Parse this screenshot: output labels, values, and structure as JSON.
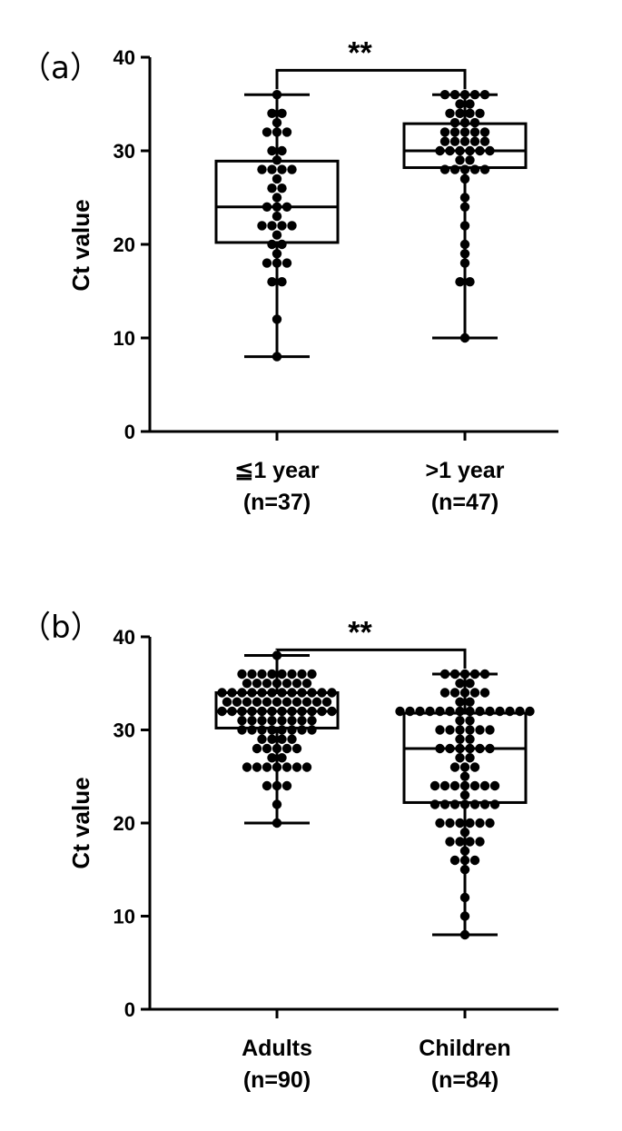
{
  "chart_data": [
    {
      "type": "box",
      "panel_label": "（a）",
      "ylabel": "Ct value",
      "ylim": [
        0,
        40
      ],
      "yticks": [
        "0",
        "10",
        "20",
        "30",
        "40"
      ],
      "significance": "**",
      "groups": [
        {
          "name": "≦1 year",
          "n_label": "(n=37)",
          "min": 8,
          "q1": 20.2,
          "median": 24,
          "q3": 28.9,
          "max": 36,
          "points": [
            36,
            34,
            34,
            33,
            32,
            32,
            32,
            30,
            30,
            29,
            28,
            28,
            28,
            28,
            27,
            26,
            26,
            25,
            24,
            24,
            24,
            23,
            22,
            22,
            22,
            22,
            21,
            20,
            20,
            19,
            18,
            18,
            18,
            16,
            16,
            12,
            8
          ]
        },
        {
          "name": ">1 year",
          "n_label": "(n=47)",
          "min": 10,
          "q1": 28.2,
          "median": 30,
          "q3": 32.9,
          "max": 36,
          "points": [
            36,
            36,
            36,
            36,
            36,
            35,
            35,
            34,
            34,
            34,
            34,
            33,
            33,
            33,
            32,
            32,
            32,
            32,
            32,
            31,
            31,
            31,
            31,
            31,
            30,
            30,
            30,
            30,
            30,
            30,
            29,
            29,
            28,
            28,
            28,
            28,
            28,
            27,
            25,
            24,
            22,
            20,
            19,
            18,
            16,
            16,
            10
          ]
        }
      ]
    },
    {
      "type": "box",
      "panel_label": "（b）",
      "ylabel": "Ct value",
      "ylim": [
        0,
        40
      ],
      "yticks": [
        "0",
        "10",
        "20",
        "30",
        "40"
      ],
      "significance": "**",
      "groups": [
        {
          "name": "Adults",
          "n_label": "(n=90)",
          "min": 20,
          "q1": 30.2,
          "median": 32,
          "q3": 34,
          "max": 38,
          "points": [
            38,
            36,
            36,
            36,
            36,
            36,
            36,
            36,
            36,
            35,
            35,
            35,
            35,
            35,
            35,
            35,
            34,
            34,
            34,
            34,
            34,
            34,
            34,
            34,
            34,
            34,
            34,
            34,
            33,
            33,
            33,
            33,
            33,
            33,
            33,
            33,
            33,
            33,
            33,
            32,
            32,
            32,
            32,
            32,
            32,
            32,
            32,
            32,
            32,
            32,
            32,
            31,
            31,
            31,
            31,
            31,
            31,
            31,
            31,
            30,
            30,
            30,
            30,
            30,
            30,
            30,
            30,
            29,
            29,
            29,
            29,
            28,
            28,
            28,
            28,
            28,
            27,
            27,
            26,
            26,
            26,
            26,
            26,
            26,
            26,
            24,
            24,
            24,
            22,
            20
          ]
        },
        {
          "name": "Children",
          "n_label": "(n=84)",
          "min": 8,
          "q1": 22.2,
          "median": 28,
          "q3": 31.8,
          "max": 36,
          "points": [
            36,
            36,
            36,
            36,
            36,
            35,
            35,
            34,
            34,
            34,
            34,
            34,
            33,
            33,
            32,
            32,
            32,
            32,
            32,
            32,
            32,
            32,
            32,
            32,
            32,
            32,
            32,
            32,
            31,
            31,
            30,
            30,
            30,
            30,
            30,
            30,
            29,
            29,
            28,
            28,
            28,
            28,
            28,
            28,
            27,
            27,
            26,
            26,
            26,
            25,
            24,
            24,
            24,
            24,
            24,
            24,
            24,
            23,
            22,
            22,
            22,
            22,
            22,
            22,
            22,
            20,
            20,
            20,
            20,
            20,
            20,
            19,
            18,
            18,
            18,
            18,
            17,
            16,
            16,
            16,
            15,
            12,
            10,
            8
          ]
        }
      ]
    }
  ]
}
